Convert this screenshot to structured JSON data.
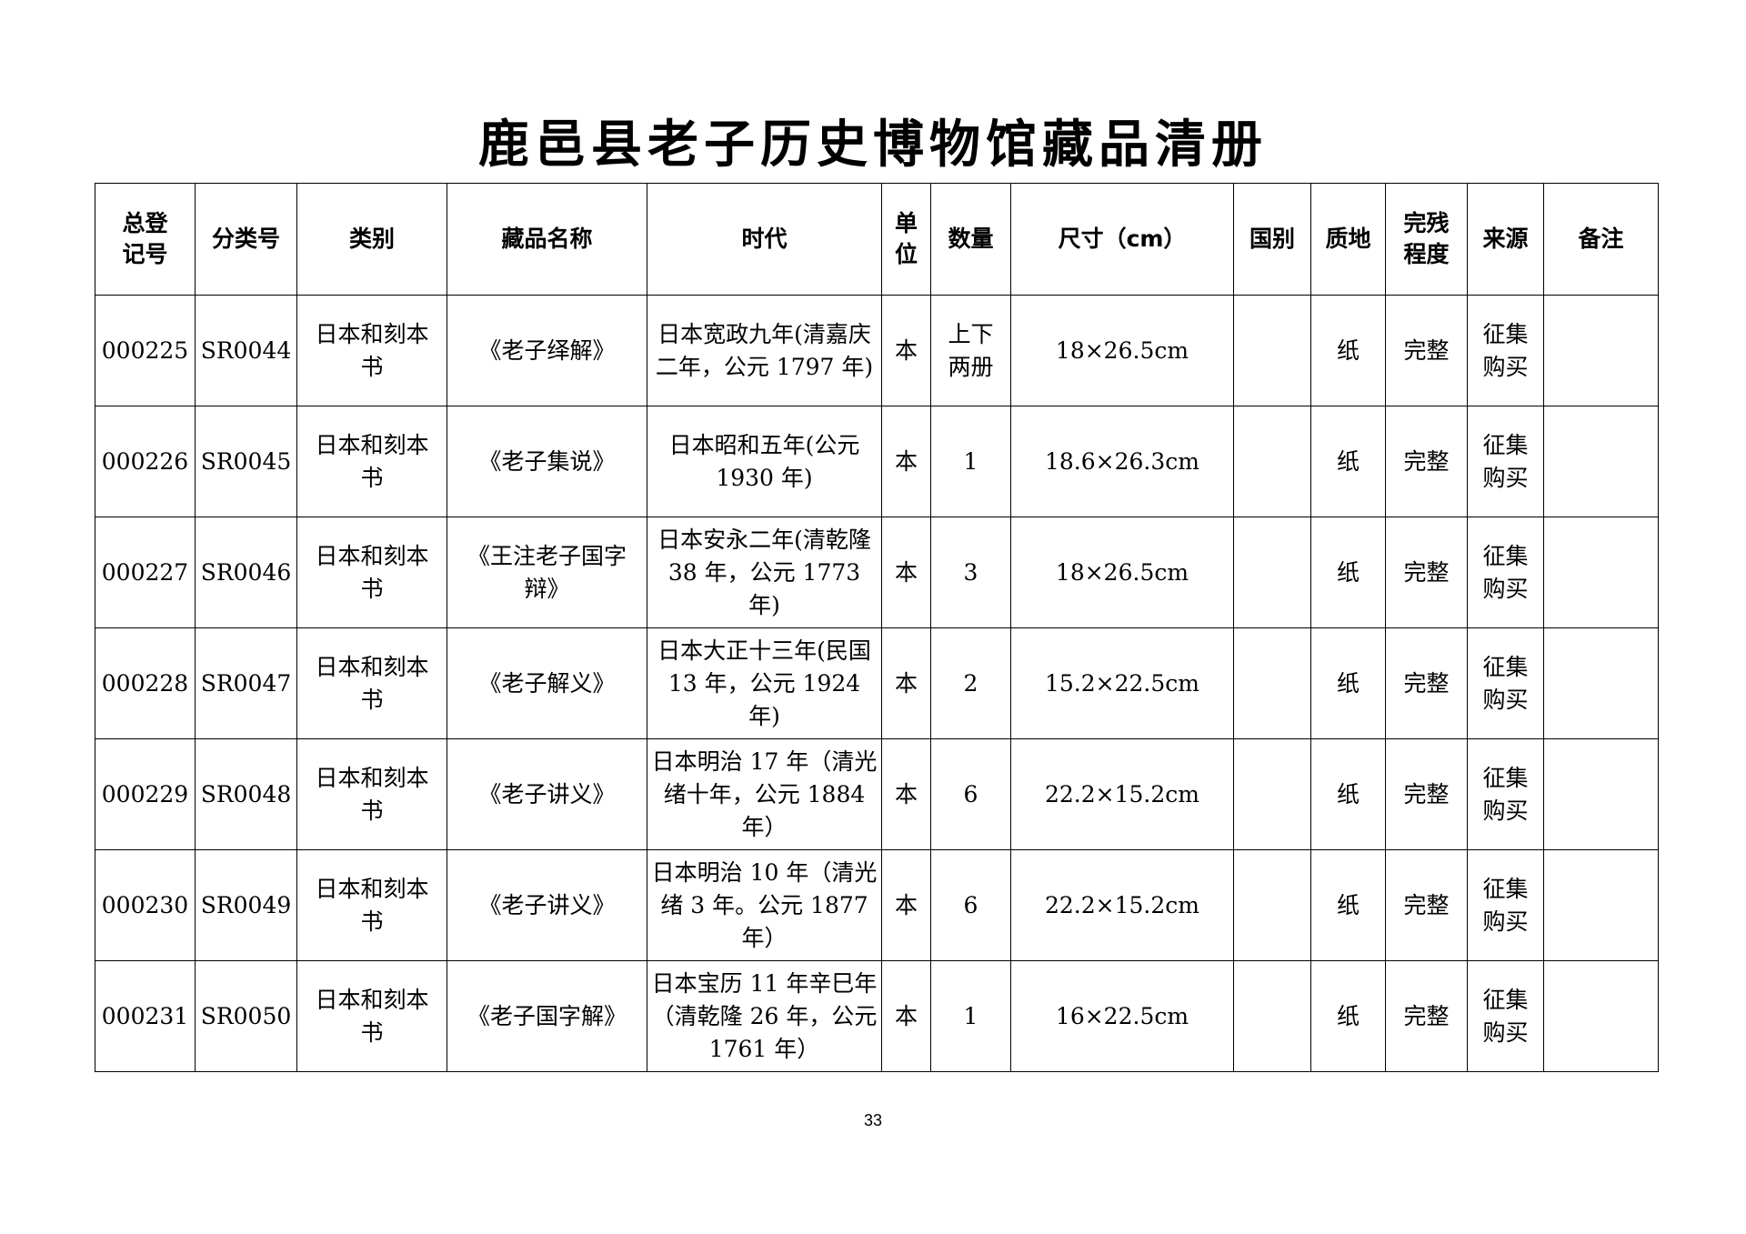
{
  "title": "鹿邑县老子历史博物馆藏品清册",
  "headers": [
    "总登记号",
    "分类号",
    "类别",
    "藏品名称",
    "时代",
    "单位",
    "数量",
    "尺寸（cm）",
    "国别",
    "质地",
    "完残程度",
    "来源",
    "备注"
  ],
  "rows": [
    {
      "reg_no": "000225",
      "class_no": "SR0044",
      "category": "日本和刻本书",
      "name": "《老子绎解》",
      "era": "日本宽政九年(清嘉庆二年，公元 1797 年)",
      "unit": "本",
      "qty": "上下两册",
      "size": "18×26.5cm",
      "country": "",
      "material": "纸",
      "condition": "完整",
      "source": "征集购买",
      "remark": ""
    },
    {
      "reg_no": "000226",
      "class_no": "SR0045",
      "category": "日本和刻本书",
      "name": "《老子集说》",
      "era": "日本昭和五年(公元 1930 年)",
      "unit": "本",
      "qty": "1",
      "size": "18.6×26.3cm",
      "country": "",
      "material": "纸",
      "condition": "完整",
      "source": "征集购买",
      "remark": ""
    },
    {
      "reg_no": "000227",
      "class_no": "SR0046",
      "category": "日本和刻本书",
      "name": "《王注老子国字辩》",
      "era": "日本安永二年(清乾隆 38 年，公元 1773 年)",
      "unit": "本",
      "qty": "3",
      "size": "18×26.5cm",
      "country": "",
      "material": "纸",
      "condition": "完整",
      "source": "征集购买",
      "remark": ""
    },
    {
      "reg_no": "000228",
      "class_no": "SR0047",
      "category": "日本和刻本书",
      "name": "《老子解义》",
      "era": "日本大正十三年(民国 13 年，公元 1924 年)",
      "unit": "本",
      "qty": "2",
      "size": "15.2×22.5cm",
      "country": "",
      "material": "纸",
      "condition": "完整",
      "source": "征集购买",
      "remark": ""
    },
    {
      "reg_no": "000229",
      "class_no": "SR0048",
      "category": "日本和刻本书",
      "name": "《老子讲义》",
      "era": "日本明治 17 年（清光绪十年，公元 1884 年）",
      "unit": "本",
      "qty": "6",
      "size": "22.2×15.2cm",
      "country": "",
      "material": "纸",
      "condition": "完整",
      "source": "征集购买",
      "remark": ""
    },
    {
      "reg_no": "000230",
      "class_no": "SR0049",
      "category": "日本和刻本书",
      "name": "《老子讲义》",
      "era": "日本明治 10 年（清光绪 3 年。公元 1877 年）",
      "unit": "本",
      "qty": "6",
      "size": "22.2×15.2cm",
      "country": "",
      "material": "纸",
      "condition": "完整",
      "source": "征集购买",
      "remark": ""
    },
    {
      "reg_no": "000231",
      "class_no": "SR0050",
      "category": "日本和刻本书",
      "name": "《老子国字解》",
      "era": "日本宝历 11 年辛巳年（清乾隆 26 年，公元 1761 年）",
      "unit": "本",
      "qty": "1",
      "size": "16×22.5cm",
      "country": "",
      "material": "纸",
      "condition": "完整",
      "source": "征集购买",
      "remark": ""
    }
  ],
  "page_number": "33"
}
